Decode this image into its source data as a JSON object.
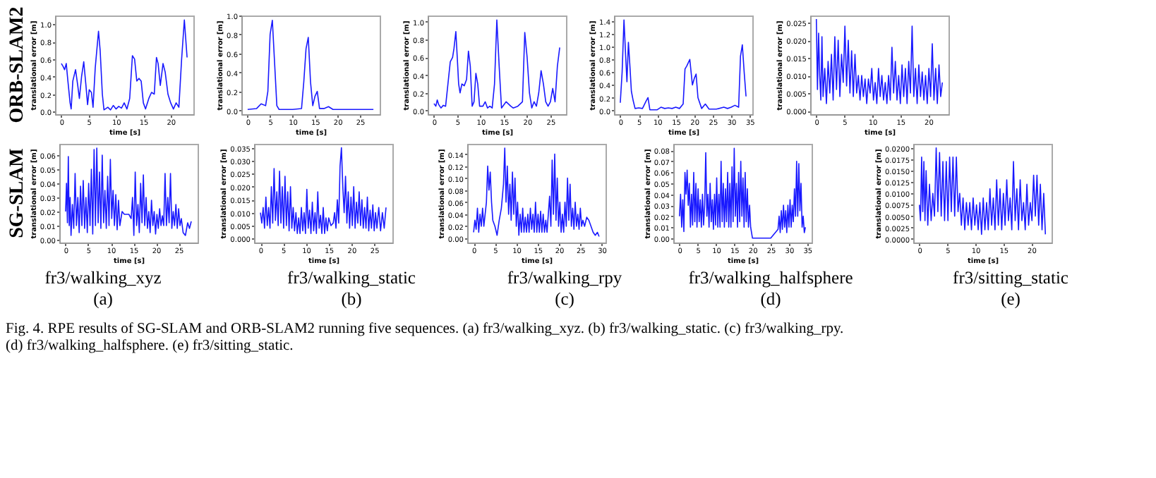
{
  "chart_data": [
    {
      "type": "line",
      "xlabel": "time [s]",
      "ylabel": "translational error [m]",
      "annotations": [
        "ORB-SLAM2"
      ],
      "xlim": [
        -1.15,
        24.15
      ],
      "xticks": [
        0,
        5,
        10,
        15,
        20
      ],
      "ylim": [
        -0.03,
        1.1
      ],
      "yticks": [
        {
          "value": 0,
          "label": "0.0"
        },
        0.2,
        0.4,
        0.6,
        0.8,
        {
          "value": 1,
          "label": "1.0"
        }
      ],
      "x": [
        0,
        0.3,
        0.6,
        0.9,
        1.2,
        1.6,
        1.8,
        2.1,
        2.6,
        3.0,
        3.3,
        3.7,
        4.1,
        4.5,
        4.8,
        5.1,
        5.5,
        5.8,
        6.2,
        6.8,
        7.1,
        7.5,
        7.8,
        8.5,
        9,
        9.5,
        10,
        10.5,
        11,
        11.5,
        12,
        12.5,
        13,
        13.4,
        13.8,
        14.2,
        14.6,
        15,
        15.4,
        16,
        16.5,
        17,
        17.4,
        17.7,
        18.1,
        18.6,
        19,
        19.5,
        20,
        20.5,
        21,
        21.5,
        22,
        22.5,
        23
      ],
      "series": [
        {
          "color": "#0000ff",
          "values": [
            0.55,
            0.52,
            0.48,
            0.55,
            0.35,
            0.1,
            0.03,
            0.35,
            0.48,
            0.3,
            0.15,
            0.4,
            0.57,
            0.3,
            0.08,
            0.25,
            0.22,
            0.05,
            0.5,
            0.92,
            0.7,
            0.2,
            0.02,
            0.05,
            0.02,
            0.07,
            0.03,
            0.06,
            0.04,
            0.1,
            0.03,
            0.15,
            0.64,
            0.6,
            0.35,
            0.38,
            0.35,
            0.1,
            0.03,
            0.15,
            0.22,
            0.2,
            0.62,
            0.55,
            0.3,
            0.55,
            0.45,
            0.2,
            0.1,
            0.03,
            0.1,
            0.05,
            0.6,
            1.05,
            0.62
          ]
        }
      ]
    },
    {
      "type": "line",
      "xlabel": "time [s]",
      "ylabel": "translational error [m]",
      "xlim": [
        -1.4,
        29.4
      ],
      "xticks": [
        0,
        5,
        10,
        15,
        20,
        25
      ],
      "ylim": [
        -0.04,
        1.0
      ],
      "yticks": [
        {
          "value": 0,
          "label": "0.0"
        },
        0.2,
        0.4,
        0.6,
        0.8,
        {
          "value": 1,
          "label": "1.0"
        }
      ],
      "x": [
        0,
        2,
        3,
        4,
        4.5,
        5,
        5.5,
        6,
        6.5,
        7,
        10,
        12,
        12.5,
        13,
        13.5,
        14,
        14.5,
        15,
        15.5,
        16,
        17,
        18,
        19,
        22,
        25,
        28
      ],
      "series": [
        {
          "color": "#0000ff",
          "values": [
            0.01,
            0.02,
            0.07,
            0.05,
            0.2,
            0.8,
            0.95,
            0.5,
            0.05,
            0.01,
            0.01,
            0.02,
            0.3,
            0.65,
            0.77,
            0.3,
            0.05,
            0.15,
            0.2,
            0.02,
            0.02,
            0.04,
            0.01,
            0.01,
            0.01,
            0.01
          ]
        }
      ]
    },
    {
      "type": "line",
      "xlabel": "time [s]",
      "ylabel": "translational error [m]",
      "xlim": [
        -1.35,
        28.35
      ],
      "xticks": [
        0,
        5,
        10,
        15,
        20,
        25
      ],
      "ylim": [
        -0.04,
        1.07
      ],
      "yticks": [
        {
          "value": 0,
          "label": "0.0"
        },
        0.2,
        0.4,
        0.6,
        0.8,
        {
          "value": 1,
          "label": "1.0"
        }
      ],
      "x": [
        0,
        0.4,
        0.7,
        1,
        1.5,
        2,
        2.5,
        3,
        3.5,
        4,
        4.3,
        4.7,
        5,
        5.3,
        5.6,
        6,
        6.5,
        7,
        7.4,
        7.8,
        8.2,
        8.6,
        9,
        9.4,
        9.8,
        10.5,
        11,
        11.5,
        12,
        12.5,
        13,
        13.5,
        14,
        14.5,
        15.5,
        16.5,
        17,
        18,
        19,
        19.5,
        20,
        20.5,
        21,
        21.5,
        22,
        22.5,
        23,
        23.5,
        24,
        24.5,
        25,
        25.5,
        26,
        26.5,
        27
      ],
      "series": [
        {
          "color": "#0000ff",
          "values": [
            0.08,
            0.05,
            0.12,
            0.07,
            0.03,
            0.06,
            0.05,
            0.3,
            0.55,
            0.6,
            0.7,
            0.89,
            0.6,
            0.3,
            0.2,
            0.3,
            0.28,
            0.35,
            0.67,
            0.5,
            0.05,
            0.1,
            0.42,
            0.3,
            0.05,
            0.05,
            0.1,
            0.03,
            0.05,
            0.03,
            0.3,
            1.02,
            0.5,
            0.03,
            0.1,
            0.05,
            0.03,
            0.05,
            0.1,
            0.88,
            0.6,
            0.2,
            0.03,
            0.1,
            0.05,
            0.2,
            0.45,
            0.3,
            0.1,
            0.05,
            0.1,
            0.25,
            0.1,
            0.5,
            0.71
          ]
        }
      ]
    },
    {
      "type": "line",
      "xlabel": "time [s]",
      "ylabel": "translational error [m]",
      "xlim": [
        -1.7,
        35.7
      ],
      "xticks": [
        0,
        5,
        10,
        15,
        20,
        25,
        30,
        35
      ],
      "ylim": [
        -0.06,
        1.49
      ],
      "yticks": [
        {
          "value": 0,
          "label": "0.0"
        },
        0.2,
        0.4,
        0.6,
        0.8,
        {
          "value": 1,
          "label": "1.0"
        },
        1.2,
        1.4
      ],
      "x": [
        0,
        0.5,
        1,
        1.5,
        1.8,
        2.2,
        2.6,
        3,
        3.5,
        4,
        5,
        6,
        7,
        7.5,
        8,
        10,
        11,
        12,
        13,
        14,
        15,
        16,
        17,
        17.5,
        18,
        18.8,
        19.5,
        20,
        20.5,
        21,
        22,
        23,
        24,
        26,
        28,
        29,
        30,
        31,
        32,
        32.5,
        33,
        33.5,
        34
      ],
      "series": [
        {
          "color": "#0000ff",
          "values": [
            0.12,
            0.6,
            1.42,
            0.8,
            0.45,
            1.07,
            0.7,
            0.3,
            0.15,
            0.03,
            0.04,
            0.03,
            0.15,
            0.2,
            0.01,
            0.01,
            0.05,
            0.03,
            0.04,
            0.03,
            0.05,
            0.03,
            0.1,
            0.65,
            0.7,
            0.8,
            0.4,
            0.5,
            0.57,
            0.2,
            0.03,
            0.1,
            0.02,
            0.02,
            0.05,
            0.03,
            0.05,
            0.08,
            0.05,
            0.85,
            1.03,
            0.6,
            0.22
          ]
        }
      ]
    },
    {
      "type": "line",
      "xlabel": "time [s]",
      "ylabel": "translational error [m]",
      "xlim": [
        -1.1,
        23.6
      ],
      "xticks": [
        0,
        5,
        10,
        15,
        20
      ],
      "ylim": [
        -0.001,
        0.027
      ],
      "yticks": [
        {
          "value": 0,
          "label": "0.000"
        },
        0.005,
        {
          "value": 0.01,
          "label": "0.010"
        },
        0.015,
        {
          "value": 0.02,
          "label": "0.020"
        },
        0.025
      ],
      "x": [
        0,
        0.2,
        0.4,
        0.6,
        0.8,
        1,
        1.2,
        1.5,
        1.8,
        2.1,
        2.4,
        2.7,
        3,
        3.3,
        3.6,
        3.9,
        4.2,
        4.5,
        4.8,
        5.1,
        5.4,
        5.7,
        6,
        6.3,
        6.6,
        6.9,
        7.2,
        7.5,
        7.8,
        8.1,
        8.4,
        8.7,
        9,
        9.3,
        9.6,
        9.9,
        10.2,
        10.5,
        10.8,
        11.1,
        11.4,
        11.7,
        12,
        12.3,
        12.6,
        12.9,
        13.2,
        13.5,
        13.8,
        14.1,
        14.4,
        14.7,
        15,
        15.3,
        15.6,
        15.9,
        16.2,
        16.5,
        16.8,
        17.1,
        17.4,
        17.7,
        18,
        18.3,
        18.6,
        18.9,
        19.2,
        19.5,
        19.8,
        20.1,
        20.4,
        20.7,
        21,
        21.3,
        21.6,
        21.9,
        22.2,
        22.5
      ],
      "series": [
        {
          "color": "#0000ff",
          "values": [
            0.026,
            0.006,
            0.022,
            0.01,
            0.003,
            0.021,
            0.004,
            0.012,
            0.002,
            0.014,
            0.005,
            0.016,
            0.003,
            0.021,
            0.006,
            0.02,
            0.004,
            0.016,
            0.008,
            0.024,
            0.007,
            0.02,
            0.005,
            0.017,
            0.004,
            0.016,
            0.005,
            0.01,
            0.003,
            0.01,
            0.004,
            0.009,
            0.002,
            0.009,
            0.005,
            0.012,
            0.003,
            0.008,
            0.002,
            0.012,
            0.004,
            0.01,
            0.003,
            0.008,
            0.002,
            0.01,
            0.003,
            0.018,
            0.005,
            0.014,
            0.003,
            0.01,
            0.002,
            0.013,
            0.004,
            0.012,
            0.002,
            0.014,
            0.005,
            0.024,
            0.004,
            0.012,
            0.002,
            0.013,
            0.004,
            0.011,
            0.003,
            0.01,
            0.002,
            0.012,
            0.004,
            0.019,
            0.003,
            0.012,
            0.002,
            0.013,
            0.004,
            0.008
          ]
        }
      ]
    },
    {
      "type": "line",
      "title": "fr3/walking_xyz",
      "xlabel": "time [s]",
      "ylabel": "translational error [m]",
      "annotations": [
        "SG-SLAM",
        "(a)"
      ],
      "xlim": [
        -1.4,
        29.2
      ],
      "xticks": [
        0,
        5,
        10,
        15,
        20,
        25
      ],
      "ylim": [
        -0.002,
        0.068
      ],
      "yticks": [
        {
          "value": 0,
          "label": "0.00"
        },
        0.01,
        0.02,
        0.03,
        0.04,
        0.05,
        0.06
      ],
      "x": [
        0,
        0.2,
        0.4,
        0.6,
        0.8,
        1,
        1.2,
        1.5,
        1.8,
        2.1,
        2.4,
        2.7,
        3,
        3.3,
        3.6,
        3.9,
        4.2,
        4.5,
        4.8,
        5.1,
        5.4,
        5.7,
        6,
        6.3,
        6.6,
        6.9,
        7.2,
        7.5,
        7.8,
        8.1,
        8.4,
        8.7,
        9,
        9.3,
        9.6,
        9.9,
        10.2,
        10.5,
        10.8,
        11.1,
        11.4,
        11.7,
        12,
        12.5,
        13,
        14,
        14.5,
        14.8,
        15.1,
        15.4,
        15.7,
        16,
        16.3,
        16.6,
        16.9,
        17.2,
        17.5,
        17.8,
        18.1,
        18.4,
        18.7,
        19,
        19.3,
        19.6,
        19.9,
        20.2,
        20.5,
        20.8,
        21.1,
        21.4,
        21.7,
        22,
        22.3,
        22.6,
        22.9,
        23.2,
        23.5,
        23.8,
        24.1,
        24.4,
        24.7,
        25,
        25.3,
        25.6,
        26,
        26.5,
        27,
        27.4,
        27.8
      ],
      "series": [
        {
          "color": "#0000ff",
          "values": [
            0.02,
            0.04,
            0.012,
            0.059,
            0.01,
            0.03,
            0.003,
            0.025,
            0.008,
            0.047,
            0.01,
            0.03,
            0.005,
            0.038,
            0.01,
            0.042,
            0.008,
            0.03,
            0.005,
            0.04,
            0.01,
            0.05,
            0.004,
            0.064,
            0.01,
            0.065,
            0.012,
            0.048,
            0.008,
            0.06,
            0.012,
            0.035,
            0.008,
            0.045,
            0.01,
            0.057,
            0.015,
            0.035,
            0.01,
            0.032,
            0.007,
            0.028,
            0.01,
            0.02,
            0.018,
            0.018,
            0.015,
            0.03,
            0.003,
            0.048,
            0.01,
            0.025,
            0.005,
            0.04,
            0.012,
            0.046,
            0.01,
            0.03,
            0.008,
            0.02,
            0.005,
            0.028,
            0.01,
            0.02,
            0.004,
            0.018,
            0.008,
            0.022,
            0.01,
            0.017,
            0.01,
            0.047,
            0.01,
            0.03,
            0.012,
            0.047,
            0.008,
            0.02,
            0.01,
            0.025,
            0.008,
            0.022,
            0.01,
            0.015,
            0.005,
            0.003,
            0.012,
            0.008,
            0.013
          ]
        }
      ]
    },
    {
      "type": "line",
      "title": "fr3/walking_static",
      "xlabel": "time [s]",
      "ylabel": "translational error [m]",
      "annotations": [
        "(b)"
      ],
      "xlim": [
        -1.4,
        29
      ],
      "xticks": [
        0,
        5,
        10,
        15,
        20,
        25
      ],
      "ylim": [
        -0.0015,
        0.0365
      ],
      "yticks": [
        {
          "value": 0,
          "label": "0.000"
        },
        0.005,
        {
          "value": 0.01,
          "label": "0.010"
        },
        0.015,
        {
          "value": 0.02,
          "label": "0.020"
        },
        0.025,
        {
          "value": 0.03,
          "label": "0.030"
        },
        0.035
      ],
      "x": [
        0,
        0.3,
        0.6,
        0.9,
        1.2,
        1.5,
        1.8,
        2.1,
        2.4,
        2.7,
        3,
        3.3,
        3.6,
        3.9,
        4.2,
        4.5,
        4.8,
        5.1,
        5.4,
        5.7,
        6,
        6.3,
        6.6,
        6.9,
        7.2,
        7.5,
        7.8,
        8.1,
        8.4,
        8.7,
        9,
        9.3,
        9.6,
        9.9,
        10.2,
        10.5,
        10.8,
        11.1,
        11.4,
        11.7,
        12,
        12.3,
        12.6,
        12.9,
        13.2,
        13.5,
        13.8,
        14.1,
        14.4,
        14.7,
        15,
        15.5,
        16,
        16.3,
        16.6,
        16.9,
        17.2,
        17.5,
        17.8,
        18.1,
        18.4,
        18.7,
        19,
        19.3,
        19.6,
        19.9,
        20.2,
        20.5,
        20.8,
        21.1,
        21.4,
        21.7,
        22,
        22.3,
        22.6,
        22.9,
        23.2,
        23.5,
        23.8,
        24.1,
        24.4,
        24.7,
        25,
        25.3,
        25.6,
        26,
        26.4,
        26.8,
        27.2,
        27.6
      ],
      "series": [
        {
          "color": "#0000ff",
          "values": [
            0.01,
            0.006,
            0.012,
            0.004,
            0.016,
            0.005,
            0.012,
            0.004,
            0.02,
            0.006,
            0.027,
            0.007,
            0.018,
            0.005,
            0.026,
            0.006,
            0.02,
            0.004,
            0.024,
            0.005,
            0.018,
            0.003,
            0.02,
            0.004,
            0.012,
            0.003,
            0.01,
            0.002,
            0.008,
            0.002,
            0.012,
            0.003,
            0.01,
            0.002,
            0.019,
            0.004,
            0.011,
            0.002,
            0.014,
            0.003,
            0.01,
            0.002,
            0.018,
            0.004,
            0.009,
            0.002,
            0.012,
            0.002,
            0.008,
            0.003,
            0.008,
            0.005,
            0.006,
            0.01,
            0.004,
            0.015,
            0.006,
            0.028,
            0.035,
            0.02,
            0.01,
            0.024,
            0.006,
            0.018,
            0.004,
            0.016,
            0.005,
            0.02,
            0.004,
            0.014,
            0.006,
            0.018,
            0.005,
            0.015,
            0.004,
            0.012,
            0.004,
            0.016,
            0.003,
            0.011,
            0.004,
            0.013,
            0.003,
            0.01,
            0.004,
            0.012,
            0.003,
            0.01,
            0.004,
            0.012
          ]
        }
      ]
    },
    {
      "type": "line",
      "title": "fr3/walking_rpy",
      "xlabel": "time [s]",
      "ylabel": "translational error [m]",
      "annotations": [
        "(c)"
      ],
      "xlim": [
        -1.5,
        30.9
      ],
      "xticks": [
        0,
        5,
        10,
        15,
        20,
        25,
        30
      ],
      "ylim": [
        -0.007,
        0.157
      ],
      "yticks": [
        {
          "value": 0,
          "label": "0.00"
        },
        0.02,
        0.04,
        0.06,
        0.08,
        {
          "value": 0.1,
          "label": "0.10"
        },
        0.12,
        0.14
      ],
      "x": [
        0,
        0.3,
        0.6,
        0.9,
        1.2,
        1.5,
        1.8,
        2.1,
        2.4,
        2.7,
        3,
        3.3,
        3.6,
        3.9,
        4.2,
        4.5,
        5,
        5.5,
        6,
        6.5,
        7,
        7.3,
        7.6,
        7.9,
        8.2,
        8.5,
        8.8,
        9.1,
        9.4,
        9.7,
        10,
        10.3,
        10.6,
        10.9,
        11.2,
        11.5,
        11.8,
        12.1,
        12.4,
        12.7,
        13,
        13.3,
        13.6,
        13.9,
        14.2,
        14.5,
        14.8,
        15.1,
        15.4,
        15.7,
        16,
        16.3,
        16.6,
        16.9,
        17.2,
        17.5,
        17.8,
        18.1,
        18.4,
        18.7,
        19,
        19.3,
        19.6,
        19.9,
        20.2,
        20.5,
        20.8,
        21.1,
        21.4,
        21.7,
        22,
        22.3,
        22.6,
        22.9,
        23.2,
        23.5,
        23.8,
        24.1,
        24.4,
        24.7,
        25,
        25.3,
        25.6,
        26,
        26.5,
        27,
        27.5,
        28,
        28.5,
        29,
        29.4
      ],
      "series": [
        {
          "color": "#0000ff",
          "values": [
            0.01,
            0.03,
            0.015,
            0.05,
            0.01,
            0.04,
            0.02,
            0.05,
            0.02,
            0.04,
            0.06,
            0.12,
            0.08,
            0.11,
            0.06,
            0.03,
            0.02,
            0.005,
            0.03,
            0.05,
            0.09,
            0.15,
            0.06,
            0.12,
            0.04,
            0.09,
            0.03,
            0.11,
            0.04,
            0.1,
            0.02,
            0.06,
            0.005,
            0.04,
            0.01,
            0.05,
            0.01,
            0.035,
            0.01,
            0.04,
            0.01,
            0.05,
            0.015,
            0.04,
            0.01,
            0.06,
            0.01,
            0.04,
            0.01,
            0.045,
            0.01,
            0.04,
            0.01,
            0.03,
            0.01,
            0.04,
            0.07,
            0.02,
            0.13,
            0.04,
            0.14,
            0.03,
            0.1,
            0.02,
            0.06,
            0.01,
            0.04,
            0.01,
            0.06,
            0.02,
            0.1,
            0.03,
            0.09,
            0.02,
            0.05,
            0.015,
            0.06,
            0.02,
            0.04,
            0.015,
            0.05,
            0.02,
            0.03,
            0.02,
            0.035,
            0.03,
            0.02,
            0.01,
            0.005,
            0.01,
            0.003
          ]
        }
      ]
    },
    {
      "type": "line",
      "title": "fr3/walking_halfsphere",
      "xlabel": "time [s]",
      "ylabel": "translational error [m]",
      "annotations": [
        "(d)"
      ],
      "xlim": [
        -1.7,
        36.2
      ],
      "xticks": [
        0,
        5,
        10,
        15,
        20,
        25,
        30,
        35
      ],
      "ylim": [
        -0.004,
        0.086
      ],
      "yticks": [
        {
          "value": 0,
          "label": "0.00"
        },
        0.01,
        0.02,
        0.03,
        0.04,
        0.05,
        0.06,
        0.07,
        0.08
      ],
      "x": [
        0,
        0.3,
        0.6,
        0.9,
        1.2,
        1.5,
        1.8,
        2.1,
        2.4,
        2.7,
        3,
        3.3,
        3.6,
        3.9,
        4.2,
        4.5,
        4.8,
        5.1,
        5.4,
        5.7,
        6,
        6.3,
        6.6,
        6.9,
        7.2,
        7.5,
        7.8,
        8.1,
        8.4,
        8.7,
        9,
        9.3,
        9.6,
        9.9,
        10.2,
        10.5,
        10.8,
        11.1,
        11.4,
        11.7,
        12,
        12.3,
        12.6,
        12.9,
        13.2,
        13.5,
        13.8,
        14.1,
        14.4,
        14.7,
        15,
        15.3,
        15.6,
        15.9,
        16.2,
        16.5,
        16.8,
        17.1,
        17.4,
        17.7,
        18,
        18.3,
        18.6,
        18.9,
        19.2,
        19.5,
        20,
        25,
        27,
        27.3,
        27.6,
        27.9,
        28.2,
        28.5,
        28.8,
        29.1,
        29.4,
        29.7,
        30,
        30.3,
        30.6,
        30.9,
        31.2,
        31.5,
        31.8,
        32.1,
        32.4,
        32.7,
        33,
        33.3,
        33.6,
        33.9,
        34.2,
        34.5
      ],
      "series": [
        {
          "color": "#0000ff",
          "values": [
            0.02,
            0.04,
            0.01,
            0.035,
            0.006,
            0.06,
            0.04,
            0.062,
            0.03,
            0.05,
            0.01,
            0.04,
            0.012,
            0.06,
            0.015,
            0.05,
            0.01,
            0.045,
            0.015,
            0.035,
            0.01,
            0.04,
            0.012,
            0.03,
            0.078,
            0.02,
            0.04,
            0.01,
            0.05,
            0.015,
            0.035,
            0.008,
            0.04,
            0.012,
            0.055,
            0.01,
            0.04,
            0.01,
            0.07,
            0.015,
            0.05,
            0.01,
            0.045,
            0.015,
            0.06,
            0.01,
            0.05,
            0.01,
            0.065,
            0.015,
            0.082,
            0.02,
            0.05,
            0.01,
            0.06,
            0.015,
            0.07,
            0.02,
            0.055,
            0.01,
            0.06,
            0.015,
            0.045,
            0.01,
            0.03,
            0.01,
            0,
            0,
            0.008,
            0.02,
            0.005,
            0.025,
            0.008,
            0.03,
            0.01,
            0.025,
            0.005,
            0.03,
            0.01,
            0.035,
            0.01,
            0.03,
            0.015,
            0.045,
            0.02,
            0.07,
            0.02,
            0.068,
            0.025,
            0.05,
            0.01,
            0.02,
            0.005,
            0.01
          ]
        }
      ]
    },
    {
      "type": "line",
      "title": "fr3/sitting_static",
      "xlabel": "time [s]",
      "ylabel": "translational error [m]",
      "annotations": [
        "(e)"
      ],
      "xlim": [
        -1.1,
        23.6
      ],
      "xticks": [
        0,
        5,
        10,
        15,
        20
      ],
      "ylim": [
        -0.0008,
        0.0209
      ],
      "yticks": [
        {
          "value": 0,
          "label": "0.0000"
        },
        0.0025,
        {
          "value": 0.005,
          "label": "0.0050"
        },
        0.0075,
        {
          "value": 0.01,
          "label": "0.0100"
        },
        0.0125,
        {
          "value": 0.015,
          "label": "0.0150"
        },
        0.0175,
        {
          "value": 0.02,
          "label": "0.0200"
        }
      ],
      "x": [
        0,
        0.2,
        0.4,
        0.6,
        0.8,
        1,
        1.2,
        1.5,
        1.8,
        2.1,
        2.4,
        2.7,
        3,
        3.3,
        3.6,
        3.9,
        4.2,
        4.5,
        4.8,
        5.1,
        5.4,
        5.7,
        6,
        6.3,
        6.6,
        6.9,
        7.2,
        7.5,
        7.8,
        8.1,
        8.4,
        8.7,
        9,
        9.3,
        9.6,
        9.9,
        10.2,
        10.5,
        10.8,
        11.1,
        11.4,
        11.7,
        12,
        12.3,
        12.6,
        12.9,
        13.2,
        13.5,
        13.8,
        14.1,
        14.4,
        14.7,
        15,
        15.3,
        15.6,
        15.9,
        16.2,
        16.5,
        16.8,
        17.1,
        17.4,
        17.7,
        18,
        18.3,
        18.6,
        18.9,
        19.2,
        19.5,
        19.8,
        20.1,
        20.4,
        20.7,
        21,
        21.3,
        21.6,
        21.9,
        22.2,
        22.5
      ],
      "series": [
        {
          "color": "#0000ff",
          "values": [
            0.0075,
            0.004,
            0.018,
            0.006,
            0.017,
            0.004,
            0.015,
            0.003,
            0.012,
            0.004,
            0.01,
            0.005,
            0.02,
            0.006,
            0.019,
            0.005,
            0.017,
            0.004,
            0.017,
            0.004,
            0.018,
            0.006,
            0.018,
            0.005,
            0.018,
            0.006,
            0.01,
            0.003,
            0.009,
            0.002,
            0.008,
            0.003,
            0.008,
            0.002,
            0.009,
            0.003,
            0.0075,
            0.002,
            0.008,
            0.001,
            0.009,
            0.002,
            0.008,
            0.002,
            0.011,
            0.003,
            0.009,
            0.002,
            0.013,
            0.003,
            0.011,
            0.002,
            0.01,
            0.003,
            0.013,
            0.004,
            0.009,
            0.002,
            0.017,
            0.004,
            0.011,
            0.002,
            0.013,
            0.004,
            0.008,
            0.002,
            0.012,
            0.003,
            0.008,
            0.004,
            0.014,
            0.005,
            0.014,
            0.003,
            0.012,
            0.002,
            0.01,
            0.001
          ]
        }
      ]
    },
    {
      "type": "other",
      "annotations": [
        "Fig. 4.    RPE results of SG-SLAM and ORB-SLAM2 running five sequences. (a) fr3/walking_xyz. (b) fr3/walking_static. (c) fr3/walking_rpy.",
        "(d) fr3/walking_halfsphere. (e) fr3/sitting_static."
      ]
    }
  ]
}
